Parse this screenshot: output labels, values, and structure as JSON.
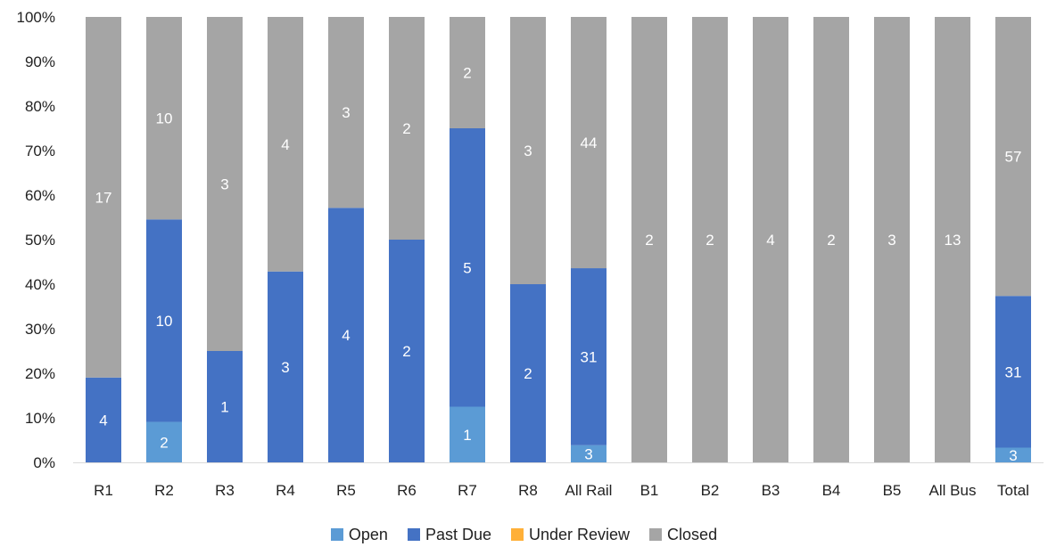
{
  "chart_data": {
    "type": "bar",
    "stacked": "percent",
    "categories": [
      "R1",
      "R2",
      "R3",
      "R4",
      "R5",
      "R6",
      "R7",
      "R8",
      "All Rail",
      "B1",
      "B2",
      "B3",
      "B4",
      "B5",
      "All Bus",
      "Total"
    ],
    "series": [
      {
        "name": "Open",
        "color": "#5b9bd5",
        "values": [
          0,
          2,
          0,
          0,
          0,
          0,
          1,
          0,
          3,
          0,
          0,
          0,
          0,
          0,
          0,
          3
        ]
      },
      {
        "name": "Past Due",
        "color": "#4472c4",
        "values": [
          4,
          10,
          1,
          3,
          4,
          2,
          5,
          2,
          31,
          0,
          0,
          0,
          0,
          0,
          0,
          31
        ]
      },
      {
        "name": "Under Review",
        "color": "#ffb038",
        "values": [
          0,
          0,
          0,
          0,
          0,
          0,
          0,
          0,
          0,
          0,
          0,
          0,
          0,
          0,
          0,
          0
        ]
      },
      {
        "name": "Closed",
        "color": "#a5a5a5",
        "values": [
          17,
          10,
          3,
          4,
          3,
          2,
          2,
          3,
          44,
          2,
          2,
          4,
          2,
          3,
          13,
          57
        ]
      }
    ],
    "y_ticks": [
      "0%",
      "10%",
      "20%",
      "30%",
      "40%",
      "50%",
      "60%",
      "70%",
      "80%",
      "90%",
      "100%"
    ],
    "ylim": [
      0,
      100
    ],
    "legend_position": "bottom",
    "grid": false
  }
}
